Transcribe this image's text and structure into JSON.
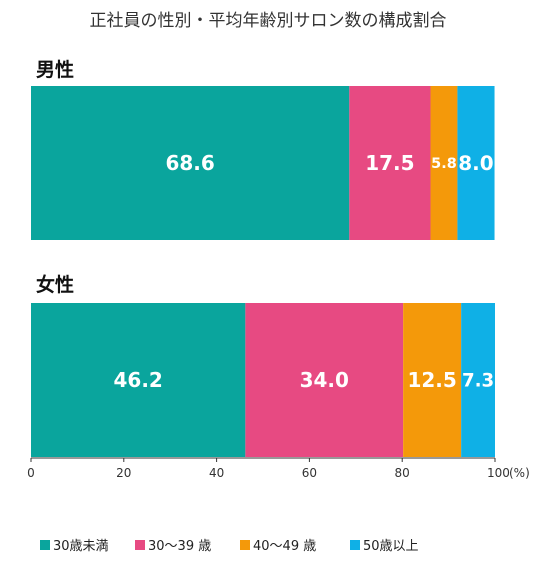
{
  "chart_data": {
    "type": "bar",
    "orientation": "horizontal",
    "stacked": true,
    "title": "正社員の性別・平均年齢別サロン数の構成割合",
    "categories": [
      "男性",
      "女性"
    ],
    "series": [
      {
        "name": "30歳未満",
        "color": "#0aa59d",
        "values": [
          68.6,
          46.2
        ],
        "labels": [
          "68.6",
          "46.2"
        ]
      },
      {
        "name": "30〜39 歳",
        "color": "#e74a82",
        "values": [
          17.5,
          34.0
        ],
        "labels": [
          "17.5",
          "34.0"
        ]
      },
      {
        "name": "40〜49 歳",
        "color": "#f4990a",
        "values": [
          5.8,
          12.5
        ],
        "labels": [
          "5.8",
          "12.5"
        ]
      },
      {
        "name": "50歳以上",
        "color": "#0fb0e6",
        "values": [
          8.0,
          7.3
        ],
        "labels": [
          "8.0",
          "7.3"
        ]
      }
    ],
    "xlim": [
      0,
      100
    ],
    "xticks": [
      "0",
      "20",
      "40",
      "60",
      "80",
      "100"
    ],
    "x_unit": "(%)",
    "grid": false,
    "legend_position": "bottom"
  }
}
